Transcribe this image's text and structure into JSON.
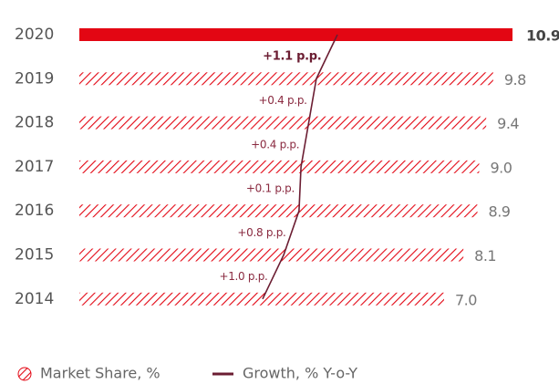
{
  "chart_data": {
    "type": "bar",
    "orientation": "horizontal",
    "categories": [
      "2020",
      "2019",
      "2018",
      "2017",
      "2016",
      "2015",
      "2014"
    ],
    "series": [
      {
        "name": "Market Share, %",
        "color": "#e30613",
        "values": [
          10.9,
          9.8,
          9.4,
          9.0,
          8.9,
          8.1,
          7.0
        ],
        "value_labels": [
          "10.9",
          "9.8",
          "9.4",
          "9.0",
          "8.9",
          "8.1",
          "7.0"
        ]
      },
      {
        "name": "Growth, % Y-o-Y",
        "color": "#6b1d32",
        "values": [
          1.1,
          0.4,
          0.4,
          0.1,
          0.8,
          1.0,
          null
        ],
        "value_labels": [
          "+1.1 p.p.",
          "+0.4 p.p.",
          "+0.4 p.p.",
          "+0.1 p.p.",
          "+0.8 p.p.",
          "+1.0 p.p.",
          null
        ]
      }
    ],
    "legend": "bottom-left"
  }
}
